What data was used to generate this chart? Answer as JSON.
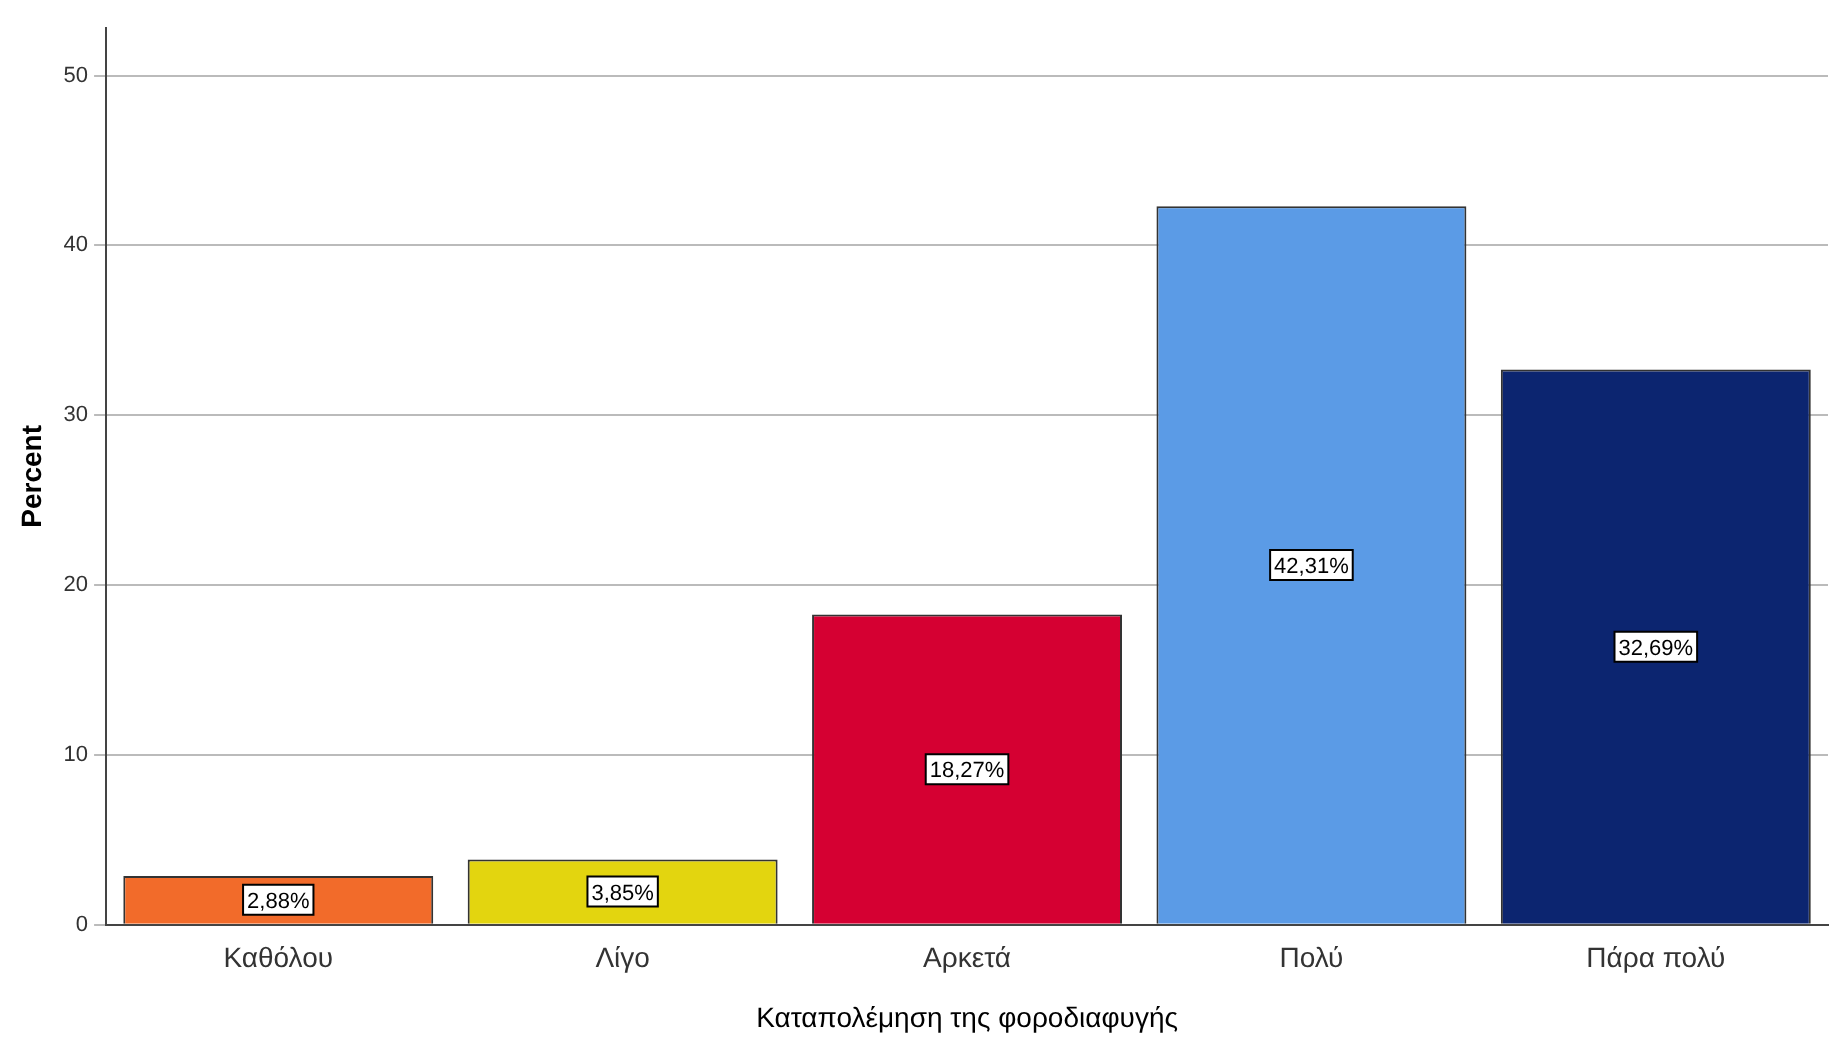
{
  "chart_data": {
    "type": "bar",
    "xlabel": "Καταπολέμηση της φοροδιαφυγής",
    "ylabel": "Percent",
    "categories": [
      "Καθόλου",
      "Λίγο",
      "Αρκετά",
      "Πολύ",
      "Πάρα πολύ"
    ],
    "values": [
      2.88,
      3.85,
      18.27,
      42.31,
      32.69
    ],
    "colors": [
      "#f26b2a",
      "#e3d50f",
      "#d50032",
      "#5b9be6",
      "#0c2570"
    ],
    "value_labels": [
      "2,88%",
      "3,85%",
      "18,27%",
      "42,31%",
      "32,69%"
    ],
    "ylim": [
      0,
      52.8
    ],
    "yticks": [
      0,
      10,
      20,
      30,
      40,
      50
    ],
    "grid": "y",
    "legend": false
  }
}
